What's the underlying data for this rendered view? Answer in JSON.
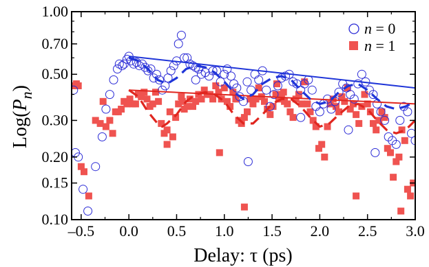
{
  "chart_data": {
    "type": "scatter",
    "xlabel": "Delay: τ (ps)",
    "ylabel": {
      "prefix": "Log(",
      "var": "P",
      "sub": "n",
      "suffix": ")"
    },
    "xlim": [
      -0.6,
      3.0
    ],
    "ylim": [
      0.1,
      1.0
    ],
    "y_scale": "log",
    "grid": false,
    "legend_position": "top-right",
    "x_ticks": [
      -0.5,
      0.0,
      0.5,
      1.0,
      1.5,
      2.0,
      2.5,
      3.0
    ],
    "x_tick_labels": [
      "–0.5",
      "0.0",
      "0.5",
      "1.0",
      "1.5",
      "2.0",
      "2.5",
      "3.0"
    ],
    "y_ticks": [
      0.1,
      0.15,
      0.2,
      0.3,
      0.5,
      0.7,
      1.0
    ],
    "y_tick_labels": [
      "0.10",
      "0.15",
      "0.20",
      "0.30",
      "0.50",
      "0.70",
      "1.00"
    ],
    "legend": [
      {
        "var": "n",
        "eq": " = 0",
        "marker": "open-circle",
        "color": "#2b2bd6"
      },
      {
        "var": "n",
        "eq": " = 1",
        "marker": "filled-square",
        "color": "#ef5350"
      }
    ],
    "series": [
      {
        "id": "n0_points",
        "marker": "open-circle",
        "color": "#2b2bd6",
        "points": [
          [
            -0.58,
            0.42
          ],
          [
            -0.56,
            0.21
          ],
          [
            -0.53,
            0.2
          ],
          [
            -0.48,
            0.14
          ],
          [
            -0.43,
            0.11
          ],
          [
            -0.35,
            0.18
          ],
          [
            -0.28,
            0.25
          ],
          [
            -0.24,
            0.34
          ],
          [
            -0.2,
            0.4
          ],
          [
            -0.16,
            0.47
          ],
          [
            -0.12,
            0.53
          ],
          [
            -0.1,
            0.56
          ],
          [
            -0.07,
            0.55
          ],
          [
            -0.05,
            0.56
          ],
          [
            -0.02,
            0.59
          ],
          [
            0.0,
            0.61
          ],
          [
            0.02,
            0.58
          ],
          [
            0.05,
            0.56
          ],
          [
            0.08,
            0.57
          ],
          [
            0.11,
            0.55
          ],
          [
            0.14,
            0.56
          ],
          [
            0.17,
            0.54
          ],
          [
            0.2,
            0.52
          ],
          [
            0.23,
            0.53
          ],
          [
            0.26,
            0.48
          ],
          [
            0.29,
            0.5
          ],
          [
            0.32,
            0.47
          ],
          [
            0.35,
            0.42
          ],
          [
            0.38,
            0.44
          ],
          [
            0.41,
            0.48
          ],
          [
            0.44,
            0.52
          ],
          [
            0.47,
            0.55
          ],
          [
            0.5,
            0.58
          ],
          [
            0.52,
            0.7
          ],
          [
            0.55,
            0.77
          ],
          [
            0.58,
            0.6
          ],
          [
            0.61,
            0.6
          ],
          [
            0.64,
            0.56
          ],
          [
            0.67,
            0.55
          ],
          [
            0.7,
            0.54
          ],
          [
            0.73,
            0.53
          ],
          [
            0.76,
            0.5
          ],
          [
            0.8,
            0.51
          ],
          [
            0.84,
            0.49
          ],
          [
            0.88,
            0.52
          ],
          [
            0.92,
            0.52
          ],
          [
            0.96,
            0.46
          ],
          [
            1.0,
            0.5
          ],
          [
            1.03,
            0.53
          ],
          [
            1.07,
            0.49
          ],
          [
            1.1,
            0.45
          ],
          [
            1.13,
            0.43
          ],
          [
            1.16,
            0.39
          ],
          [
            1.2,
            0.37
          ],
          [
            1.24,
            0.46
          ],
          [
            1.28,
            0.42
          ],
          [
            1.32,
            0.5
          ],
          [
            1.36,
            0.47
          ],
          [
            1.4,
            0.52
          ],
          [
            1.44,
            0.42
          ],
          [
            1.48,
            0.35
          ],
          [
            1.52,
            0.4
          ],
          [
            1.56,
            0.44
          ],
          [
            1.6,
            0.48
          ],
          [
            1.64,
            0.49
          ],
          [
            1.68,
            0.5
          ],
          [
            1.72,
            0.46
          ],
          [
            1.76,
            0.45
          ],
          [
            1.8,
            0.42
          ],
          [
            1.84,
            0.45
          ],
          [
            1.88,
            0.47
          ],
          [
            1.92,
            0.42
          ],
          [
            1.96,
            0.35
          ],
          [
            2.0,
            0.33
          ],
          [
            2.04,
            0.36
          ],
          [
            2.08,
            0.38
          ],
          [
            2.12,
            0.34
          ],
          [
            2.16,
            0.37
          ],
          [
            2.2,
            0.41
          ],
          [
            2.24,
            0.45
          ],
          [
            2.28,
            0.43
          ],
          [
            2.32,
            0.4
          ],
          [
            2.36,
            0.38
          ],
          [
            2.4,
            0.45
          ],
          [
            2.44,
            0.5
          ],
          [
            2.48,
            0.46
          ],
          [
            2.52,
            0.42
          ],
          [
            2.56,
            0.4
          ],
          [
            2.6,
            0.36
          ],
          [
            2.64,
            0.33
          ],
          [
            2.68,
            0.3
          ],
          [
            2.72,
            0.25
          ],
          [
            2.76,
            0.24
          ],
          [
            2.8,
            0.23
          ],
          [
            2.84,
            0.3
          ],
          [
            2.88,
            0.35
          ],
          [
            2.92,
            0.33
          ],
          [
            2.96,
            0.26
          ],
          [
            3.0,
            0.24
          ],
          [
            0.7,
            0.47
          ],
          [
            1.25,
            0.19
          ],
          [
            1.8,
            0.31
          ],
          [
            2.3,
            0.27
          ],
          [
            2.58,
            0.21
          ]
        ]
      },
      {
        "id": "n1_points",
        "marker": "filled-square",
        "color": "#ef5350",
        "points": [
          [
            -0.58,
            0.44
          ],
          [
            -0.55,
            0.45
          ],
          [
            -0.53,
            0.44
          ],
          [
            -0.5,
            0.18
          ],
          [
            -0.47,
            0.17
          ],
          [
            -0.42,
            0.13
          ],
          [
            -0.35,
            0.3
          ],
          [
            -0.3,
            0.29
          ],
          [
            -0.27,
            0.37
          ],
          [
            -0.24,
            0.28
          ],
          [
            -0.2,
            0.3
          ],
          [
            -0.17,
            0.26
          ],
          [
            -0.14,
            0.33
          ],
          [
            -0.11,
            0.33
          ],
          [
            -0.08,
            0.34
          ],
          [
            -0.05,
            0.37
          ],
          [
            -0.02,
            0.36
          ],
          [
            0.01,
            0.38
          ],
          [
            0.04,
            0.36
          ],
          [
            0.07,
            0.36
          ],
          [
            0.1,
            0.4
          ],
          [
            0.13,
            0.39
          ],
          [
            0.16,
            0.41
          ],
          [
            0.19,
            0.38
          ],
          [
            0.22,
            0.35
          ],
          [
            0.25,
            0.36
          ],
          [
            0.28,
            0.41
          ],
          [
            0.31,
            0.37
          ],
          [
            0.34,
            0.29
          ],
          [
            0.37,
            0.26
          ],
          [
            0.4,
            0.27
          ],
          [
            0.43,
            0.33
          ],
          [
            0.46,
            0.25
          ],
          [
            0.49,
            0.31
          ],
          [
            0.52,
            0.36
          ],
          [
            0.55,
            0.39
          ],
          [
            0.58,
            0.34
          ],
          [
            0.61,
            0.35
          ],
          [
            0.64,
            0.38
          ],
          [
            0.67,
            0.35
          ],
          [
            0.7,
            0.37
          ],
          [
            0.73,
            0.4
          ],
          [
            0.76,
            0.38
          ],
          [
            0.79,
            0.42
          ],
          [
            0.82,
            0.4
          ],
          [
            0.85,
            0.4
          ],
          [
            0.88,
            0.38
          ],
          [
            0.91,
            0.44
          ],
          [
            0.94,
            0.41
          ],
          [
            0.97,
            0.38
          ],
          [
            1.0,
            0.43
          ],
          [
            1.03,
            0.37
          ],
          [
            1.06,
            0.35
          ],
          [
            1.09,
            0.41
          ],
          [
            1.12,
            0.38
          ],
          [
            1.15,
            0.3
          ],
          [
            1.18,
            0.29
          ],
          [
            1.21,
            0.31
          ],
          [
            1.24,
            0.33
          ],
          [
            1.27,
            0.38
          ],
          [
            1.3,
            0.36
          ],
          [
            1.33,
            0.38
          ],
          [
            1.36,
            0.43
          ],
          [
            1.39,
            0.39
          ],
          [
            1.42,
            0.37
          ],
          [
            1.45,
            0.34
          ],
          [
            1.48,
            0.32
          ],
          [
            1.51,
            0.35
          ],
          [
            1.54,
            0.4
          ],
          [
            1.57,
            0.38
          ],
          [
            1.6,
            0.4
          ],
          [
            1.63,
            0.37
          ],
          [
            1.66,
            0.36
          ],
          [
            1.69,
            0.33
          ],
          [
            1.72,
            0.31
          ],
          [
            1.75,
            0.38
          ],
          [
            1.78,
            0.4
          ],
          [
            1.81,
            0.36
          ],
          [
            1.84,
            0.46
          ],
          [
            1.87,
            0.36
          ],
          [
            1.9,
            0.33
          ],
          [
            1.93,
            0.3
          ],
          [
            1.96,
            0.28
          ],
          [
            1.99,
            0.22
          ],
          [
            2.02,
            0.23
          ],
          [
            2.05,
            0.2
          ],
          [
            2.08,
            0.28
          ],
          [
            2.11,
            0.36
          ],
          [
            2.14,
            0.38
          ],
          [
            2.17,
            0.35
          ],
          [
            2.2,
            0.33
          ],
          [
            2.23,
            0.39
          ],
          [
            2.26,
            0.37
          ],
          [
            2.29,
            0.43
          ],
          [
            2.32,
            0.34
          ],
          [
            2.35,
            0.36
          ],
          [
            2.38,
            0.32
          ],
          [
            2.41,
            0.29
          ],
          [
            2.44,
            0.35
          ],
          [
            2.47,
            0.4
          ],
          [
            2.5,
            0.36
          ],
          [
            2.53,
            0.33
          ],
          [
            2.56,
            0.29
          ],
          [
            2.59,
            0.27
          ],
          [
            2.62,
            0.3
          ],
          [
            2.65,
            0.33
          ],
          [
            2.68,
            0.31
          ],
          [
            2.71,
            0.22
          ],
          [
            2.74,
            0.21
          ],
          [
            2.77,
            0.16
          ],
          [
            2.8,
            0.19
          ],
          [
            2.83,
            0.2
          ],
          [
            2.86,
            0.27
          ],
          [
            2.89,
            0.24
          ],
          [
            2.92,
            0.14
          ],
          [
            2.95,
            0.13
          ],
          [
            2.98,
            0.15
          ],
          [
            1.21,
            0.115
          ],
          [
            2.38,
            0.13
          ],
          [
            1.62,
            0.41
          ],
          [
            0.95,
            0.21
          ],
          [
            0.4,
            0.23
          ],
          [
            2.85,
            0.11
          ],
          [
            0.56,
            0.37
          ],
          [
            1.55,
            0.45
          ]
        ]
      },
      {
        "id": "n0_fit",
        "style": "solid",
        "color": "#1f35d8",
        "points": [
          [
            0.0,
            0.61
          ],
          [
            3.0,
            0.43
          ]
        ]
      },
      {
        "id": "n1_fit",
        "style": "solid",
        "color": "#e0261f",
        "points": [
          [
            0.0,
            0.42
          ],
          [
            3.0,
            0.36
          ]
        ]
      },
      {
        "id": "n0_model",
        "style": "dashed",
        "color": "#1f35d8",
        "points": [
          [
            0.0,
            0.6
          ],
          [
            0.1,
            0.58
          ],
          [
            0.2,
            0.53
          ],
          [
            0.3,
            0.47
          ],
          [
            0.4,
            0.45
          ],
          [
            0.5,
            0.48
          ],
          [
            0.6,
            0.53
          ],
          [
            0.7,
            0.55
          ],
          [
            0.8,
            0.54
          ],
          [
            0.9,
            0.51
          ],
          [
            1.0,
            0.46
          ],
          [
            1.1,
            0.41
          ],
          [
            1.2,
            0.38
          ],
          [
            1.3,
            0.4
          ],
          [
            1.4,
            0.45
          ],
          [
            1.5,
            0.48
          ],
          [
            1.6,
            0.49
          ],
          [
            1.7,
            0.47
          ],
          [
            1.8,
            0.42
          ],
          [
            1.9,
            0.38
          ],
          [
            2.0,
            0.36
          ],
          [
            2.1,
            0.37
          ],
          [
            2.2,
            0.41
          ],
          [
            2.3,
            0.44
          ],
          [
            2.4,
            0.45
          ],
          [
            2.5,
            0.42
          ],
          [
            2.6,
            0.38
          ],
          [
            2.7,
            0.35
          ],
          [
            2.8,
            0.34
          ],
          [
            2.9,
            0.35
          ],
          [
            3.0,
            0.37
          ]
        ]
      },
      {
        "id": "n1_model",
        "style": "dashed",
        "color": "#e0261f",
        "points": [
          [
            0.0,
            0.42
          ],
          [
            0.1,
            0.39
          ],
          [
            0.2,
            0.33
          ],
          [
            0.3,
            0.29
          ],
          [
            0.35,
            0.28
          ],
          [
            0.4,
            0.29
          ],
          [
            0.5,
            0.32
          ],
          [
            0.6,
            0.37
          ],
          [
            0.7,
            0.4
          ],
          [
            0.8,
            0.41
          ],
          [
            0.9,
            0.4
          ],
          [
            1.0,
            0.37
          ],
          [
            1.1,
            0.32
          ],
          [
            1.2,
            0.29
          ],
          [
            1.3,
            0.29
          ],
          [
            1.4,
            0.32
          ],
          [
            1.5,
            0.36
          ],
          [
            1.6,
            0.38
          ],
          [
            1.7,
            0.38
          ],
          [
            1.8,
            0.35
          ],
          [
            1.9,
            0.31
          ],
          [
            2.0,
            0.28
          ],
          [
            2.1,
            0.29
          ],
          [
            2.2,
            0.32
          ],
          [
            2.3,
            0.35
          ],
          [
            2.4,
            0.36
          ],
          [
            2.5,
            0.34
          ],
          [
            2.6,
            0.3
          ],
          [
            2.7,
            0.27
          ],
          [
            2.8,
            0.26
          ],
          [
            2.9,
            0.27
          ],
          [
            3.0,
            0.3
          ]
        ]
      }
    ]
  }
}
